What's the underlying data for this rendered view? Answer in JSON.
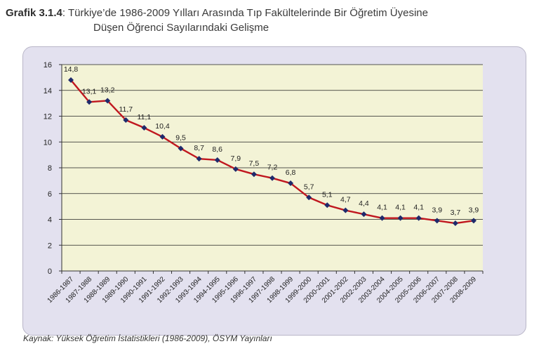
{
  "caption": {
    "label": "Grafik 3.1.4",
    "line1": ": Türkiye’de 1986-2009 Yılları Arasında Tıp Fakültelerinde Bir Öğretim Üyesine",
    "line2": "Düşen Öğrenci Sayılarındaki Gelişme"
  },
  "source": "Kaynak: Yüksek Öğretim İstatistikleri (1986-2009), ÖSYM Yayınları",
  "chart_data": {
    "type": "line",
    "categories": [
      "1986-1987",
      "1987-1988",
      "1988-1989",
      "1989-1990",
      "1990-1991",
      "1991-1992",
      "1992-1993",
      "1993-1994",
      "1994-1995",
      "1995-1996",
      "1996-1997",
      "1997-1998",
      "1998-1999",
      "1999-2000",
      "2000-2001",
      "2001-2002",
      "2002-2003",
      "2003-2004",
      "2004-2005",
      "2005-2006",
      "2006-2007",
      "2007-2008",
      "2008-2009"
    ],
    "values": [
      14.8,
      13.1,
      13.2,
      11.7,
      11.1,
      10.4,
      9.5,
      8.7,
      8.6,
      7.9,
      7.5,
      7.2,
      6.8,
      5.7,
      5.1,
      4.7,
      4.4,
      4.1,
      4.1,
      4.1,
      3.9,
      3.7,
      3.9
    ],
    "value_labels": [
      "14,8",
      "13,1",
      "13,2",
      "11,7",
      "11,1",
      "10,4",
      "9,5",
      "8,7",
      "8,6",
      "7,9",
      "7,5",
      "7,2",
      "6,8",
      "5,7",
      "5,1",
      "4,7",
      "4,4",
      "4,1",
      "4,1",
      "4,1",
      "3,9",
      "3,7",
      "3,9"
    ],
    "ylim": [
      0,
      16
    ],
    "yticks": [
      0,
      2,
      4,
      6,
      8,
      10,
      12,
      14,
      16
    ],
    "grid": true,
    "legend": "none",
    "colors": {
      "line": "#c0171f",
      "marker": "#1f2a6b",
      "plot_bg": "#f3f3d6",
      "grid": "#222222"
    }
  }
}
